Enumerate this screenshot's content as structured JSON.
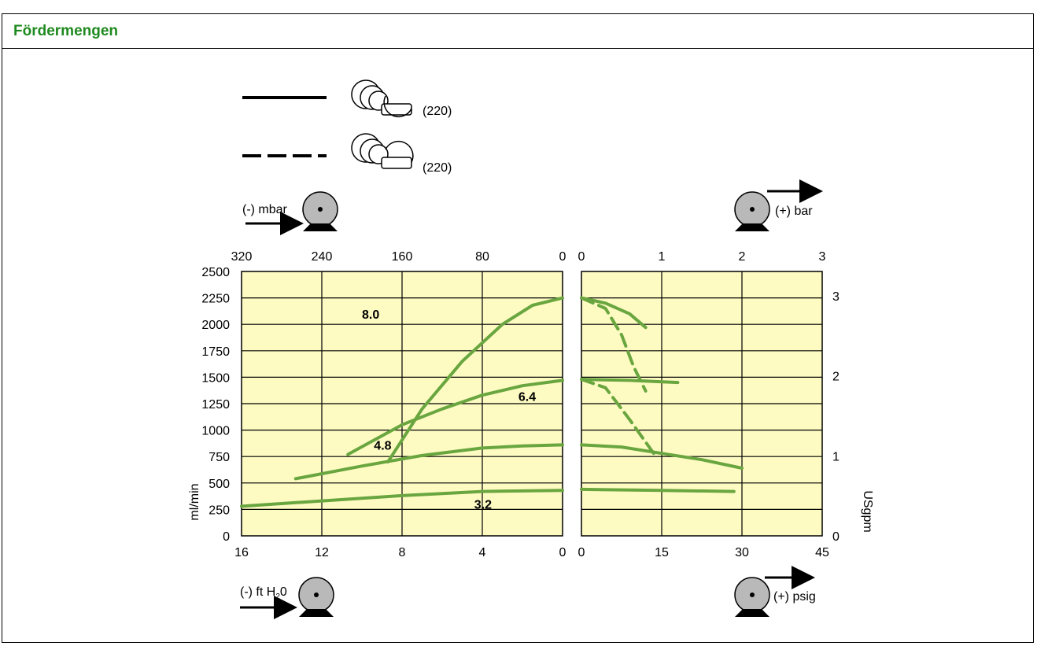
{
  "header": {
    "title": "Fördermengen"
  },
  "legend": [
    {
      "label": "(220)",
      "style": "solid"
    },
    {
      "label": "(220)",
      "style": "dashed"
    }
  ],
  "badges": {
    "suction_bar": "(-) mbar",
    "pressure_bar": "(+) bar",
    "suction_ft": "(-) ft H",
    "suction_ft_sub": "2",
    "suction_ft_end": "0",
    "pressure_psig": "(+) psig"
  },
  "colors": {
    "curve": "#6aa640",
    "plot_bg": "#fdfbc2",
    "title": "#1f8a1f",
    "pump": "#b9b9b9"
  },
  "chart_data": {
    "type": "line",
    "left_panel": {
      "x_top_label_values": [
        "320",
        "240",
        "160",
        "80",
        "0"
      ],
      "x_bottom_label_values": [
        "16",
        "12",
        "8",
        "4",
        "0"
      ],
      "top_unit": "mbar (suction)",
      "bottom_unit": "ft H2O (suction)"
    },
    "right_panel": {
      "x_top_label_values": [
        "0",
        "1",
        "2",
        "3"
      ],
      "x_bottom_label_values": [
        "0",
        "15",
        "30",
        "45"
      ],
      "top_unit": "bar",
      "bottom_unit": "psig"
    },
    "y_left": {
      "label": "ml/min",
      "ticks": [
        "2500",
        "2250",
        "2000",
        "1750",
        "1500",
        "1250",
        "1000",
        "750",
        "500",
        "250",
        "0"
      ],
      "range": [
        0,
        2500
      ]
    },
    "y_right": {
      "label": "USgpm",
      "ticks": [
        "3",
        "2",
        "1",
        "0"
      ],
      "range": [
        0,
        3.3
      ]
    },
    "series_labels": [
      "8.0",
      "6.4",
      "4.8",
      "3.2"
    ],
    "series": [
      {
        "name": "8.0",
        "style": "solid",
        "suction": [
          [
            8.7,
            700
          ],
          [
            7,
            1200
          ],
          [
            5,
            1650
          ],
          [
            3,
            2000
          ],
          [
            1.5,
            2180
          ],
          [
            0,
            2250
          ]
        ],
        "pressure": [
          [
            0,
            2250
          ],
          [
            0.3,
            2200
          ],
          [
            0.6,
            2100
          ],
          [
            0.8,
            1970
          ]
        ]
      },
      {
        "name": "8.0",
        "style": "dashed",
        "pressure": [
          [
            0,
            2250
          ],
          [
            0.3,
            2150
          ],
          [
            0.5,
            1900
          ],
          [
            0.65,
            1600
          ],
          [
            0.8,
            1370
          ]
        ]
      },
      {
        "name": "6.4",
        "style": "solid",
        "suction": [
          [
            10.7,
            770
          ],
          [
            8,
            1050
          ],
          [
            6,
            1200
          ],
          [
            4,
            1330
          ],
          [
            2,
            1420
          ],
          [
            0,
            1470
          ]
        ],
        "pressure": [
          [
            0,
            1480
          ],
          [
            0.6,
            1470
          ],
          [
            1.2,
            1450
          ]
        ]
      },
      {
        "name": "6.4",
        "style": "dashed",
        "pressure": [
          [
            0,
            1480
          ],
          [
            0.3,
            1400
          ],
          [
            0.6,
            1100
          ],
          [
            0.9,
            780
          ]
        ]
      },
      {
        "name": "4.8",
        "style": "solid",
        "suction": [
          [
            13.3,
            540
          ],
          [
            10,
            660
          ],
          [
            7,
            760
          ],
          [
            4,
            830
          ],
          [
            2,
            850
          ],
          [
            0,
            860
          ]
        ],
        "pressure": [
          [
            0,
            860
          ],
          [
            0.5,
            840
          ],
          [
            1.0,
            780
          ],
          [
            1.5,
            720
          ],
          [
            2.0,
            640
          ]
        ]
      },
      {
        "name": "3.2",
        "style": "solid",
        "suction": [
          [
            16,
            280
          ],
          [
            12,
            330
          ],
          [
            8,
            380
          ],
          [
            4,
            420
          ],
          [
            0,
            430
          ]
        ],
        "pressure": [
          [
            0,
            440
          ],
          [
            1.0,
            430
          ],
          [
            1.9,
            420
          ]
        ]
      }
    ]
  }
}
